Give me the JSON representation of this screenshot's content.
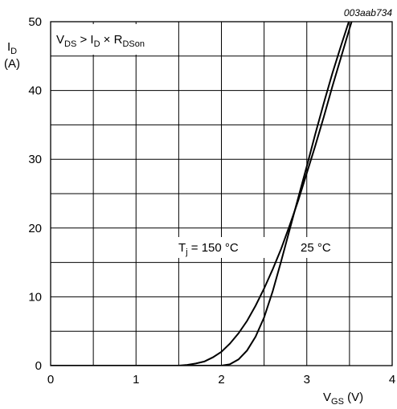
{
  "chart_data": {
    "type": "line",
    "figure_code": "003aab734",
    "ylabel": {
      "main": "I",
      "sub": "D",
      "unit": "(A)"
    },
    "xlabel": {
      "main": "V",
      "sub": "GS",
      "unit": " (V)"
    },
    "condition": {
      "a": "V",
      "a_sub": "DS",
      "b": " > I",
      "b_sub": "D",
      "c": " × R",
      "c_sub": "DSon"
    },
    "xlim": [
      0,
      4
    ],
    "ylim": [
      0,
      50
    ],
    "x_ticks": [
      "0",
      "1",
      "2",
      "3",
      "4"
    ],
    "y_ticks": [
      "0",
      "10",
      "20",
      "30",
      "40",
      "50"
    ],
    "grid": true,
    "annotations": {
      "t150": {
        "main": "T",
        "sub": "j",
        "rest": " = 150 °C"
      },
      "t25": "25 °C"
    },
    "series": [
      {
        "name": "Tj = 150 °C",
        "x": [
          0,
          1.5,
          1.6,
          1.7,
          1.8,
          1.9,
          2.0,
          2.1,
          2.2,
          2.3,
          2.4,
          2.5,
          2.6,
          2.7,
          2.8,
          2.9,
          3.0,
          3.1,
          3.2,
          3.3,
          3.4,
          3.5,
          3.6
        ],
        "y": [
          0,
          0,
          0.1,
          0.3,
          0.6,
          1.2,
          2.0,
          3.2,
          4.7,
          6.5,
          8.7,
          11.2,
          14.0,
          17.0,
          20.4,
          24.0,
          28.0,
          32.0,
          36.2,
          40.6,
          44.8,
          49.0,
          53.0
        ]
      },
      {
        "name": "25 °C",
        "x": [
          0,
          2.0,
          2.1,
          2.2,
          2.3,
          2.4,
          2.5,
          2.6,
          2.7,
          2.8,
          2.9,
          3.0,
          3.1,
          3.2,
          3.3,
          3.4,
          3.5,
          3.6
        ],
        "y": [
          0,
          0,
          0.2,
          0.9,
          2.2,
          4.2,
          7.0,
          10.8,
          15.2,
          19.8,
          24.4,
          29.0,
          33.7,
          38.2,
          42.5,
          46.5,
          50.3,
          54.0
        ]
      }
    ]
  }
}
